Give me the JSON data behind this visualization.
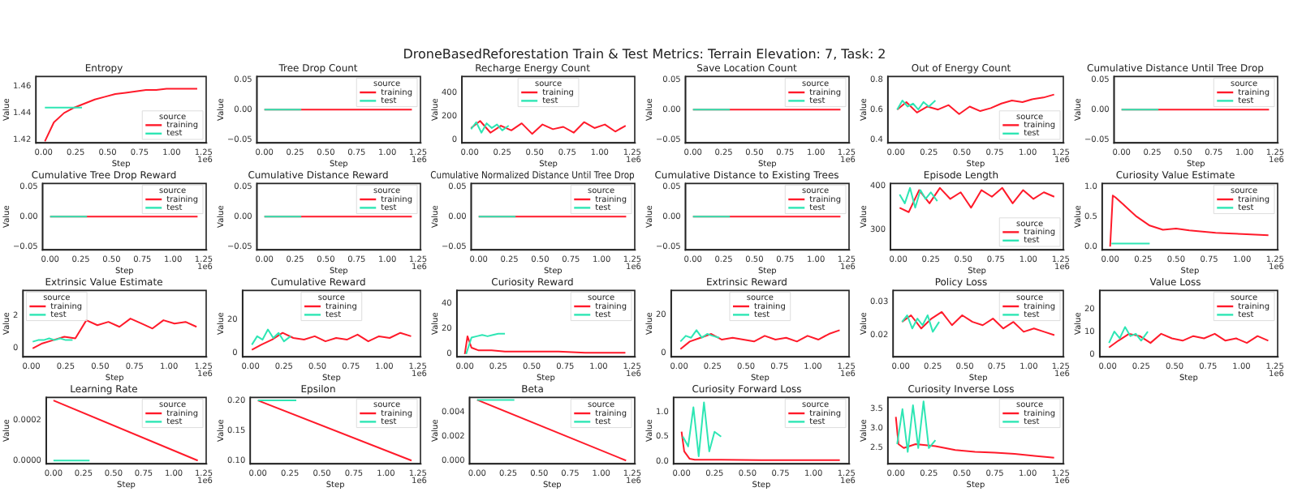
{
  "chart_data": [
    {
      "type": "other",
      "title": "DroneBasedReforestation Train & Test Metrics: Terrain Elevation: 7, Task: 2"
    },
    {
      "type": "line",
      "title": "Entropy",
      "xlabel": "Step",
      "ylabel": "Value",
      "legend_title": "source",
      "legend": "bottom right",
      "xlim": [
        -0.06,
        1.27
      ],
      "xticks": [
        {
          "value": 0,
          "label": "0.00"
        },
        0.25,
        {
          "value": 0.5,
          "label": "0.50"
        },
        0.75,
        {
          "value": 1,
          "label": "1.00"
        },
        1.25
      ],
      "ylim": [
        1.418,
        1.467
      ],
      "yticks": [
        1.42,
        1.44,
        1.46
      ],
      "annotations": [
        "1e6"
      ],
      "series": [
        {
          "name": "training",
          "color": "#ff1a2a",
          "x": [
            0.01,
            0.08,
            0.16,
            0.24,
            0.32,
            0.4,
            0.48,
            0.56,
            0.64,
            0.72,
            0.8,
            0.88,
            0.96,
            1.04,
            1.12,
            1.2
          ],
          "values": [
            1.419,
            1.433,
            1.44,
            1.444,
            1.447,
            1.45,
            1.452,
            1.454,
            1.455,
            1.456,
            1.457,
            1.457,
            1.458,
            1.458,
            1.458,
            1.458
          ]
        },
        {
          "name": "test",
          "color": "#2ee6b4",
          "x": [
            0.01,
            0.05,
            0.09,
            0.13,
            0.17,
            0.21,
            0.25,
            0.3
          ],
          "values": [
            1.444,
            1.444,
            1.444,
            1.444,
            1.444,
            1.444,
            1.444,
            1.444
          ]
        }
      ]
    },
    {
      "type": "line",
      "title": "Tree Drop Count",
      "xlabel": "Step",
      "ylabel": "Value",
      "legend_title": "source",
      "legend": "top right",
      "xlim": [
        -0.06,
        1.27
      ],
      "xticks": [
        {
          "value": 0,
          "label": "0.00"
        },
        0.25,
        {
          "value": 0.5,
          "label": "0.50"
        },
        0.75,
        {
          "value": 1,
          "label": "1.00"
        },
        1.25
      ],
      "ylim": [
        -0.055,
        0.055
      ],
      "yticks": [
        {
          "value": -0.05,
          "label": "−0.05"
        },
        {
          "value": 0,
          "label": "0.00"
        },
        0.05
      ],
      "annotations": [
        "1e6"
      ],
      "series": [
        {
          "name": "training",
          "color": "#ff1a2a",
          "x": [
            0,
            1.2
          ],
          "values": [
            0,
            0
          ]
        },
        {
          "name": "test",
          "color": "#2ee6b4",
          "x": [
            0,
            0.3
          ],
          "values": [
            0,
            0
          ]
        }
      ]
    },
    {
      "type": "line",
      "title": "Recharge Energy Count",
      "xlabel": "Step",
      "ylabel": "Value",
      "legend_title": "source",
      "legend": "top",
      "xlim": [
        -0.06,
        1.27
      ],
      "xticks": [
        {
          "value": 0,
          "label": "0.00"
        },
        0.25,
        {
          "value": 0.5,
          "label": "0.50"
        },
        0.75,
        {
          "value": 1,
          "label": "1.00"
        },
        1.25
      ],
      "ylim": [
        -25,
        540
      ],
      "yticks": [
        0,
        200,
        400
      ],
      "annotations": [
        "1e6"
      ],
      "series": [
        {
          "name": "training",
          "color": "#ff1a2a",
          "x": [
            0.01,
            0.08,
            0.16,
            0.24,
            0.32,
            0.4,
            0.48,
            0.56,
            0.64,
            0.72,
            0.8,
            0.88,
            0.96,
            1.04,
            1.12,
            1.2
          ],
          "values": [
            100,
            160,
            60,
            120,
            80,
            140,
            50,
            130,
            90,
            110,
            60,
            150,
            100,
            130,
            70,
            120
          ]
        },
        {
          "name": "test",
          "color": "#2ee6b4",
          "x": [
            0.01,
            0.05,
            0.09,
            0.13,
            0.17,
            0.21,
            0.25,
            0.3
          ],
          "values": [
            90,
            150,
            60,
            140,
            100,
            130,
            80,
            120
          ]
        }
      ]
    },
    {
      "type": "line",
      "title": "Save Location Count",
      "xlabel": "Step",
      "ylabel": "Value",
      "legend_title": "source",
      "legend": "top right",
      "xlim": [
        -0.06,
        1.27
      ],
      "xticks": [
        {
          "value": 0,
          "label": "0.00"
        },
        0.25,
        {
          "value": 0.5,
          "label": "0.50"
        },
        0.75,
        {
          "value": 1,
          "label": "1.00"
        },
        1.25
      ],
      "ylim": [
        -0.055,
        0.055
      ],
      "yticks": [
        {
          "value": -0.05,
          "label": "−0.05"
        },
        {
          "value": 0,
          "label": "0.00"
        },
        0.05
      ],
      "annotations": [
        "1e6"
      ],
      "series": [
        {
          "name": "training",
          "color": "#ff1a2a",
          "x": [
            0,
            1.2
          ],
          "values": [
            0,
            0
          ]
        },
        {
          "name": "test",
          "color": "#2ee6b4",
          "x": [
            0,
            0.3
          ],
          "values": [
            0,
            0
          ]
        }
      ]
    },
    {
      "type": "line",
      "title": "Out of Energy Count",
      "xlabel": "Step",
      "ylabel": "Value",
      "legend_title": "source",
      "legend": "bottom right",
      "xlim": [
        -0.06,
        1.27
      ],
      "xticks": [
        {
          "value": 0,
          "label": "0.00"
        },
        0.25,
        {
          "value": 0.5,
          "label": "0.50"
        },
        0.75,
        {
          "value": 1,
          "label": "1.00"
        },
        1.25
      ],
      "ylim": [
        0.38,
        0.82
      ],
      "yticks": [
        0.4,
        0.6,
        0.8
      ],
      "annotations": [
        "1e6"
      ],
      "series": [
        {
          "name": "training",
          "color": "#ff1a2a",
          "x": [
            0.01,
            0.08,
            0.16,
            0.24,
            0.32,
            0.4,
            0.48,
            0.56,
            0.64,
            0.72,
            0.8,
            0.88,
            0.96,
            1.04,
            1.12,
            1.2
          ],
          "values": [
            0.6,
            0.65,
            0.58,
            0.62,
            0.6,
            0.63,
            0.57,
            0.62,
            0.59,
            0.61,
            0.64,
            0.66,
            0.65,
            0.67,
            0.68,
            0.7
          ]
        },
        {
          "name": "test",
          "color": "#2ee6b4",
          "x": [
            0.01,
            0.05,
            0.09,
            0.13,
            0.17,
            0.21,
            0.25,
            0.3
          ],
          "values": [
            0.6,
            0.66,
            0.62,
            0.64,
            0.6,
            0.65,
            0.62,
            0.66
          ]
        }
      ]
    },
    {
      "type": "line",
      "title": "Cumulative Distance Until Tree Drop",
      "xlabel": "Step",
      "ylabel": "Value",
      "legend_title": "source",
      "legend": "top right",
      "xlim": [
        -0.06,
        1.27
      ],
      "xticks": [
        {
          "value": 0,
          "label": "0.00"
        },
        0.25,
        {
          "value": 0.5,
          "label": "0.50"
        },
        0.75,
        {
          "value": 1,
          "label": "1.00"
        },
        1.25
      ],
      "ylim": [
        -0.055,
        0.055
      ],
      "yticks": [
        {
          "value": -0.05,
          "label": "−0.05"
        },
        {
          "value": 0,
          "label": "0.00"
        },
        0.05
      ],
      "annotations": [
        "1e6"
      ],
      "series": [
        {
          "name": "training",
          "color": "#ff1a2a",
          "x": [
            0,
            1.2
          ],
          "values": [
            0,
            0
          ]
        },
        {
          "name": "test",
          "color": "#2ee6b4",
          "x": [
            0,
            0.3
          ],
          "values": [
            0,
            0
          ]
        }
      ]
    },
    {
      "type": "line",
      "title": "Cumulative Tree Drop Reward",
      "xlabel": "Step",
      "ylabel": "Value",
      "legend_title": "source",
      "legend": "top right",
      "xlim": [
        -0.06,
        1.27
      ],
      "xticks": [
        {
          "value": 0,
          "label": "0.00"
        },
        0.25,
        {
          "value": 0.5,
          "label": "0.50"
        },
        0.75,
        {
          "value": 1,
          "label": "1.00"
        },
        1.25
      ],
      "ylim": [
        -0.055,
        0.055
      ],
      "yticks": [
        {
          "value": -0.05,
          "label": "−0.05"
        },
        {
          "value": 0,
          "label": "0.00"
        },
        0.05
      ],
      "annotations": [
        "1e6"
      ],
      "series": [
        {
          "name": "training",
          "color": "#ff1a2a",
          "x": [
            0,
            1.2
          ],
          "values": [
            0,
            0
          ]
        },
        {
          "name": "test",
          "color": "#2ee6b4",
          "x": [
            0,
            0.3
          ],
          "values": [
            0,
            0
          ]
        }
      ]
    },
    {
      "type": "line",
      "title": "Cumulative Distance Reward",
      "xlabel": "Step",
      "ylabel": "Value",
      "legend_title": "source",
      "legend": "top right",
      "xlim": [
        -0.06,
        1.27
      ],
      "xticks": [
        {
          "value": 0,
          "label": "0.00"
        },
        0.25,
        {
          "value": 0.5,
          "label": "0.50"
        },
        0.75,
        {
          "value": 1,
          "label": "1.00"
        },
        1.25
      ],
      "ylim": [
        -0.055,
        0.055
      ],
      "yticks": [
        {
          "value": -0.05,
          "label": "−0.05"
        },
        {
          "value": 0,
          "label": "0.00"
        },
        0.05
      ],
      "annotations": [
        "1e6"
      ],
      "series": [
        {
          "name": "training",
          "color": "#ff1a2a",
          "x": [
            0,
            1.2
          ],
          "values": [
            0,
            0
          ]
        },
        {
          "name": "test",
          "color": "#2ee6b4",
          "x": [
            0,
            0.3
          ],
          "values": [
            0,
            0
          ]
        }
      ]
    },
    {
      "type": "line",
      "title": "Cumulative Normalized Distance Until Tree Drop",
      "xlabel": "Step",
      "ylabel": "Value",
      "legend_title": "source",
      "legend": "top right",
      "xlim": [
        -0.06,
        1.27
      ],
      "xticks": [
        {
          "value": 0,
          "label": "0.00"
        },
        0.25,
        {
          "value": 0.5,
          "label": "0.50"
        },
        0.75,
        {
          "value": 1,
          "label": "1.00"
        },
        1.25
      ],
      "ylim": [
        -0.055,
        0.055
      ],
      "yticks": [
        {
          "value": -0.05,
          "label": "−0.05"
        },
        {
          "value": 0,
          "label": "0.00"
        },
        0.05
      ],
      "annotations": [
        "1e6"
      ],
      "series": [
        {
          "name": "training",
          "color": "#ff1a2a",
          "x": [
            0,
            1.2
          ],
          "values": [
            0,
            0
          ]
        },
        {
          "name": "test",
          "color": "#2ee6b4",
          "x": [
            0,
            0.3
          ],
          "values": [
            0,
            0
          ]
        }
      ]
    },
    {
      "type": "line",
      "title": "Cumulative Distance to Existing Trees",
      "xlabel": "Step",
      "ylabel": "Value",
      "legend_title": "source",
      "legend": "top right",
      "xlim": [
        -0.06,
        1.27
      ],
      "xticks": [
        {
          "value": 0,
          "label": "0.00"
        },
        0.25,
        {
          "value": 0.5,
          "label": "0.50"
        },
        0.75,
        {
          "value": 1,
          "label": "1.00"
        },
        1.25
      ],
      "ylim": [
        -0.055,
        0.055
      ],
      "yticks": [
        {
          "value": -0.05,
          "label": "−0.05"
        },
        {
          "value": 0,
          "label": "0.00"
        },
        0.05
      ],
      "annotations": [
        "1e6"
      ],
      "series": [
        {
          "name": "training",
          "color": "#ff1a2a",
          "x": [
            0,
            1.2
          ],
          "values": [
            0,
            0
          ]
        },
        {
          "name": "test",
          "color": "#2ee6b4",
          "x": [
            0,
            0.3
          ],
          "values": [
            0,
            0
          ]
        }
      ]
    },
    {
      "type": "line",
      "title": "Episode Length",
      "xlabel": "Step",
      "ylabel": "Value",
      "legend_title": "source",
      "legend": "bottom right",
      "xlim": [
        -0.06,
        1.27
      ],
      "xticks": [
        {
          "value": 0,
          "label": "0.00"
        },
        0.25,
        {
          "value": 0.5,
          "label": "0.50"
        },
        0.75,
        {
          "value": 1,
          "label": "1.00"
        },
        1.25
      ],
      "ylim": [
        255,
        405
      ],
      "yticks": [
        300,
        400
      ],
      "annotations": [
        "1e6"
      ],
      "series": [
        {
          "name": "training",
          "color": "#ff1a2a",
          "x": [
            0.01,
            0.08,
            0.16,
            0.24,
            0.32,
            0.4,
            0.48,
            0.56,
            0.64,
            0.72,
            0.8,
            0.88,
            0.96,
            1.04,
            1.12,
            1.2
          ],
          "values": [
            350,
            340,
            390,
            360,
            395,
            370,
            385,
            350,
            390,
            375,
            395,
            360,
            390,
            370,
            385,
            375
          ]
        },
        {
          "name": "test",
          "color": "#2ee6b4",
          "x": [
            0.01,
            0.05,
            0.09,
            0.13,
            0.17,
            0.21,
            0.25,
            0.3
          ],
          "values": [
            380,
            360,
            395,
            350,
            390,
            370,
            385,
            365
          ]
        }
      ]
    },
    {
      "type": "line",
      "title": "Curiosity Value Estimate",
      "xlabel": "Step",
      "ylabel": "Value",
      "legend_title": "source",
      "legend": "top right",
      "xlim": [
        -0.06,
        1.27
      ],
      "xticks": [
        {
          "value": 0,
          "label": "0.00"
        },
        0.25,
        {
          "value": 0.5,
          "label": "0.50"
        },
        0.75,
        {
          "value": 1,
          "label": "1.00"
        },
        1.25
      ],
      "ylim": [
        -0.05,
        1.05
      ],
      "yticks": [
        {
          "value": 0,
          "label": "0.0"
        },
        0.5,
        {
          "value": 1,
          "label": "1.0"
        }
      ],
      "annotations": [
        "1e6"
      ],
      "series": [
        {
          "name": "training",
          "color": "#ff1a2a",
          "x": [
            0,
            0.02,
            0.04,
            0.1,
            0.2,
            0.3,
            0.4,
            0.5,
            0.6,
            0.7,
            0.8,
            0.9,
            1,
            1.1,
            1.2
          ],
          "values": [
            0,
            0.85,
            0.82,
            0.7,
            0.5,
            0.35,
            0.28,
            0.3,
            0.27,
            0.25,
            0.23,
            0.22,
            0.21,
            0.2,
            0.19
          ]
        },
        {
          "name": "test",
          "color": "#2ee6b4",
          "x": [
            0.01,
            0.05,
            0.09,
            0.13,
            0.17,
            0.21,
            0.25,
            0.3
          ],
          "values": [
            0.05,
            0.05,
            0.05,
            0.05,
            0.05,
            0.05,
            0.05,
            0.05
          ]
        }
      ]
    },
    {
      "type": "line",
      "title": "Extrinsic Value Estimate",
      "xlabel": "Step",
      "ylabel": "Value",
      "legend_title": "source",
      "legend": "top left",
      "xlim": [
        -0.06,
        1.27
      ],
      "xticks": [
        {
          "value": 0,
          "label": "0.00"
        },
        0.25,
        {
          "value": 0.5,
          "label": "0.50"
        },
        0.75,
        {
          "value": 1,
          "label": "1.00"
        },
        1.25
      ],
      "ylim": [
        -0.5,
        3.5
      ],
      "yticks": [
        0,
        2
      ],
      "annotations": [
        "1e6"
      ],
      "series": [
        {
          "name": "training",
          "color": "#ff1a2a",
          "x": [
            0.01,
            0.08,
            0.16,
            0.24,
            0.32,
            0.4,
            0.48,
            0.56,
            0.64,
            0.72,
            0.8,
            0.88,
            0.96,
            1.04,
            1.12,
            1.2
          ],
          "values": [
            0,
            0.3,
            0.5,
            0.7,
            0.6,
            1.7,
            1.4,
            1.6,
            1.3,
            1.8,
            1.5,
            1.2,
            1.7,
            1.5,
            1.6,
            1.3
          ]
        },
        {
          "name": "test",
          "color": "#2ee6b4",
          "x": [
            0.01,
            0.05,
            0.09,
            0.13,
            0.17,
            0.21,
            0.25,
            0.3
          ],
          "values": [
            0.4,
            0.5,
            0.5,
            0.6,
            0.5,
            0.6,
            0.5,
            0.5
          ]
        }
      ]
    },
    {
      "type": "line",
      "title": "Cumulative Reward",
      "xlabel": "Step",
      "ylabel": "Value",
      "legend_title": "source",
      "legend": "top",
      "xlim": [
        -0.06,
        1.27
      ],
      "xticks": [
        {
          "value": 0,
          "label": "0.00"
        },
        0.25,
        {
          "value": 0.5,
          "label": "0.50"
        },
        0.75,
        {
          "value": 1,
          "label": "1.00"
        },
        1.25
      ],
      "ylim": [
        -2,
        37
      ],
      "yticks": [
        0,
        20
      ],
      "annotations": [
        "1e6"
      ],
      "series": [
        {
          "name": "training",
          "color": "#ff1a2a",
          "x": [
            0.01,
            0.08,
            0.16,
            0.24,
            0.32,
            0.4,
            0.48,
            0.56,
            0.64,
            0.72,
            0.8,
            0.88,
            0.96,
            1.04,
            1.12,
            1.2
          ],
          "values": [
            2,
            5,
            8,
            12,
            9,
            8,
            10,
            7,
            9,
            8,
            11,
            7,
            10,
            9,
            12,
            10
          ]
        },
        {
          "name": "test",
          "color": "#2ee6b4",
          "x": [
            0.01,
            0.05,
            0.09,
            0.13,
            0.17,
            0.21,
            0.25,
            0.3
          ],
          "values": [
            5,
            10,
            8,
            14,
            9,
            12,
            7,
            10
          ]
        }
      ]
    },
    {
      "type": "line",
      "title": "Curiosity Reward",
      "xlabel": "Step",
      "ylabel": "Value",
      "legend_title": "source",
      "legend": "top right",
      "xlim": [
        -0.06,
        1.27
      ],
      "xticks": [
        {
          "value": 0,
          "label": "0.00"
        },
        0.25,
        {
          "value": 0.5,
          "label": "0.50"
        },
        0.75,
        {
          "value": 1,
          "label": "1.00"
        },
        1.25
      ],
      "ylim": [
        -2,
        50
      ],
      "yticks": [
        0,
        20,
        40
      ],
      "annotations": [
        "1e6"
      ],
      "series": [
        {
          "name": "training",
          "color": "#ff1a2a",
          "x": [
            0,
            0.02,
            0.05,
            0.1,
            0.2,
            0.3,
            0.5,
            0.7,
            0.9,
            1.1,
            1.2
          ],
          "values": [
            0,
            14,
            5,
            3,
            3,
            2,
            2,
            2,
            1,
            1,
            1
          ]
        },
        {
          "name": "test",
          "color": "#2ee6b4",
          "x": [
            0.01,
            0.05,
            0.09,
            0.13,
            0.17,
            0.21,
            0.25,
            0.3
          ],
          "values": [
            0,
            13,
            14,
            15,
            14,
            15,
            16,
            16
          ]
        }
      ]
    },
    {
      "type": "line",
      "title": "Extrinsic Reward",
      "xlabel": "Step",
      "ylabel": "Value",
      "legend_title": "source",
      "legend": "top",
      "xlim": [
        -0.06,
        1.27
      ],
      "xticks": [
        {
          "value": 0,
          "label": "0.00"
        },
        0.25,
        {
          "value": 0.5,
          "label": "0.50"
        },
        0.75,
        {
          "value": 1,
          "label": "1.00"
        },
        1.25
      ],
      "ylim": [
        -2,
        33
      ],
      "yticks": [
        0,
        20
      ],
      "annotations": [
        "1e6"
      ],
      "series": [
        {
          "name": "training",
          "color": "#ff1a2a",
          "x": [
            0.01,
            0.08,
            0.16,
            0.24,
            0.32,
            0.4,
            0.48,
            0.56,
            0.64,
            0.72,
            0.8,
            0.88,
            0.96,
            1.04,
            1.12,
            1.2
          ],
          "values": [
            2,
            6,
            8,
            10,
            7,
            8,
            7,
            6,
            9,
            7,
            8,
            6,
            9,
            7,
            10,
            12
          ]
        },
        {
          "name": "test",
          "color": "#2ee6b4",
          "x": [
            0.01,
            0.05,
            0.09,
            0.13,
            0.17,
            0.21,
            0.25,
            0.3
          ],
          "values": [
            6,
            9,
            8,
            12,
            8,
            10,
            9,
            8
          ]
        }
      ]
    },
    {
      "type": "line",
      "title": "Policy Loss",
      "xlabel": "Step",
      "ylabel": "Value",
      "legend_title": "source",
      "legend": "top right",
      "xlim": [
        -0.06,
        1.27
      ],
      "xticks": [
        {
          "value": 0,
          "label": "0.00"
        },
        0.25,
        {
          "value": 0.5,
          "label": "0.50"
        },
        0.75,
        {
          "value": 1,
          "label": "1.00"
        },
        1.25
      ],
      "ylim": [
        0.0135,
        0.0335
      ],
      "yticks": [
        0.02,
        0.03
      ],
      "annotations": [
        "1e6"
      ],
      "series": [
        {
          "name": "training",
          "color": "#ff1a2a",
          "x": [
            0.01,
            0.08,
            0.16,
            0.24,
            0.32,
            0.4,
            0.48,
            0.56,
            0.64,
            0.72,
            0.8,
            0.88,
            0.96,
            1.04,
            1.12,
            1.2
          ],
          "values": [
            0.024,
            0.026,
            0.022,
            0.025,
            0.027,
            0.023,
            0.026,
            0.024,
            0.023,
            0.025,
            0.022,
            0.024,
            0.021,
            0.022,
            0.021,
            0.02
          ]
        },
        {
          "name": "test",
          "color": "#2ee6b4",
          "x": [
            0.01,
            0.05,
            0.09,
            0.13,
            0.17,
            0.21,
            0.25,
            0.3
          ],
          "values": [
            0.024,
            0.026,
            0.022,
            0.025,
            0.023,
            0.026,
            0.021,
            0.024
          ]
        }
      ]
    },
    {
      "type": "line",
      "title": "Value Loss",
      "xlabel": "Step",
      "ylabel": "Value",
      "legend_title": "source",
      "legend": "top right",
      "xlim": [
        -0.06,
        1.27
      ],
      "xticks": [
        {
          "value": 0,
          "label": "0.00"
        },
        0.25,
        {
          "value": 0.5,
          "label": "0.50"
        },
        0.75,
        {
          "value": 1,
          "label": "1.00"
        },
        1.25
      ],
      "ylim": [
        -1,
        28
      ],
      "yticks": [
        0,
        10,
        20
      ],
      "annotations": [
        "1e6"
      ],
      "series": [
        {
          "name": "training",
          "color": "#ff1a2a",
          "x": [
            0.01,
            0.08,
            0.16,
            0.24,
            0.32,
            0.4,
            0.48,
            0.56,
            0.64,
            0.72,
            0.8,
            0.88,
            0.96,
            1.04,
            1.12,
            1.2
          ],
          "values": [
            3,
            6,
            9,
            8,
            5,
            9,
            7,
            6,
            8,
            7,
            9,
            6,
            7,
            5,
            8,
            6
          ]
        },
        {
          "name": "test",
          "color": "#2ee6b4",
          "x": [
            0.01,
            0.05,
            0.09,
            0.13,
            0.17,
            0.21,
            0.25,
            0.3
          ],
          "values": [
            5,
            10,
            7,
            12,
            8,
            9,
            6,
            10
          ]
        }
      ]
    },
    {
      "type": "line",
      "title": "Learning Rate",
      "xlabel": "Step",
      "ylabel": "Value",
      "legend_title": "source",
      "legend": "top right",
      "xlim": [
        -0.06,
        1.27
      ],
      "xticks": [
        {
          "value": 0,
          "label": "0.00"
        },
        0.25,
        {
          "value": 0.5,
          "label": "0.50"
        },
        0.75,
        {
          "value": 1,
          "label": "1.00"
        },
        1.25
      ],
      "ylim": [
        -1.5e-05,
        0.000315
      ],
      "yticks": [
        {
          "value": 0,
          "label": "0.0000"
        },
        0.0002
      ],
      "annotations": [
        "1e6"
      ],
      "series": [
        {
          "name": "training",
          "color": "#ff1a2a",
          "x": [
            0,
            1.2
          ],
          "values": [
            0.0003,
            0
          ]
        },
        {
          "name": "test",
          "color": "#2ee6b4",
          "x": [
            0,
            0.3
          ],
          "values": [
            0,
            0
          ]
        }
      ]
    },
    {
      "type": "line",
      "title": "Epsilon",
      "xlabel": "Step",
      "ylabel": "Value",
      "legend_title": "source",
      "legend": "top right",
      "xlim": [
        -0.06,
        1.27
      ],
      "xticks": [
        {
          "value": 0,
          "label": "0.00"
        },
        0.25,
        {
          "value": 0.5,
          "label": "0.50"
        },
        0.75,
        {
          "value": 1,
          "label": "1.00"
        },
        1.25
      ],
      "ylim": [
        0.095,
        0.205
      ],
      "yticks": [
        {
          "value": 0.1,
          "label": "0.10"
        },
        0.15,
        {
          "value": 0.2,
          "label": "0.20"
        }
      ],
      "annotations": [
        "1e6"
      ],
      "series": [
        {
          "name": "training",
          "color": "#ff1a2a",
          "x": [
            0,
            1.2
          ],
          "values": [
            0.2,
            0.1
          ]
        },
        {
          "name": "test",
          "color": "#2ee6b4",
          "x": [
            0,
            0.3
          ],
          "values": [
            0.2,
            0.2
          ]
        }
      ]
    },
    {
      "type": "line",
      "title": "Beta",
      "xlabel": "Step",
      "ylabel": "Value",
      "legend_title": "source",
      "legend": "top right",
      "xlim": [
        -0.06,
        1.27
      ],
      "xticks": [
        {
          "value": 0,
          "label": "0.00"
        },
        0.25,
        {
          "value": 0.5,
          "label": "0.50"
        },
        0.75,
        {
          "value": 1,
          "label": "1.00"
        },
        1.25
      ],
      "ylim": [
        -0.00025,
        0.0052
      ],
      "yticks": [
        {
          "value": 0,
          "label": "0.000"
        },
        0.002,
        0.004
      ],
      "annotations": [
        "1e6"
      ],
      "series": [
        {
          "name": "training",
          "color": "#ff1a2a",
          "x": [
            0,
            1.2
          ],
          "values": [
            0.005,
            0
          ]
        },
        {
          "name": "test",
          "color": "#2ee6b4",
          "x": [
            0,
            0.3
          ],
          "values": [
            0.005,
            0.005
          ]
        }
      ]
    },
    {
      "type": "line",
      "title": "Curiosity Forward Loss",
      "xlabel": "Step",
      "ylabel": "Value",
      "legend_title": "source",
      "legend": "top right",
      "xlim": [
        -0.06,
        1.27
      ],
      "xticks": [
        {
          "value": 0,
          "label": "0.00"
        },
        0.25,
        {
          "value": 0.5,
          "label": "0.50"
        },
        0.75,
        {
          "value": 1,
          "label": "1.00"
        },
        1.25
      ],
      "ylim": [
        -0.05,
        1.3
      ],
      "yticks": [
        {
          "value": 0,
          "label": "0.0"
        },
        0.5,
        {
          "value": 1,
          "label": "1.0"
        }
      ],
      "annotations": [
        "1e6"
      ],
      "series": [
        {
          "name": "training",
          "color": "#ff1a2a",
          "x": [
            0,
            0.02,
            0.06,
            0.1,
            0.3,
            0.6,
            0.9,
            1.2
          ],
          "values": [
            0.6,
            0.2,
            0.05,
            0.03,
            0.03,
            0.02,
            0.02,
            0.02
          ]
        },
        {
          "name": "test",
          "color": "#2ee6b4",
          "x": [
            0.01,
            0.05,
            0.09,
            0.13,
            0.17,
            0.21,
            0.25,
            0.3
          ],
          "values": [
            0.5,
            0.3,
            1.1,
            0.1,
            1.2,
            0.2,
            0.6,
            0.5
          ]
        }
      ]
    },
    {
      "type": "line",
      "title": "Curiosity Inverse Loss",
      "xlabel": "Step",
      "ylabel": "Value",
      "legend_title": "source",
      "legend": "top right",
      "xlim": [
        -0.06,
        1.27
      ],
      "xticks": [
        {
          "value": 0,
          "label": "0.00"
        },
        0.25,
        {
          "value": 0.5,
          "label": "0.50"
        },
        0.75,
        {
          "value": 1,
          "label": "1.00"
        },
        1.25
      ],
      "ylim": [
        2.1,
        3.8
      ],
      "yticks": [
        2.5,
        {
          "value": 3,
          "label": "3.0"
        },
        3.5
      ],
      "annotations": [
        "1e6"
      ],
      "series": [
        {
          "name": "training",
          "color": "#ff1a2a",
          "x": [
            0,
            0.02,
            0.06,
            0.15,
            0.3,
            0.45,
            0.6,
            0.75,
            0.9,
            1.05,
            1.2
          ],
          "values": [
            3.3,
            2.6,
            2.5,
            2.6,
            2.55,
            2.45,
            2.4,
            2.38,
            2.35,
            2.3,
            2.25
          ]
        },
        {
          "name": "test",
          "color": "#2ee6b4",
          "x": [
            0.01,
            0.05,
            0.09,
            0.13,
            0.17,
            0.21,
            0.25,
            0.3
          ],
          "values": [
            2.6,
            3.5,
            2.4,
            3.6,
            2.5,
            3.7,
            2.5,
            2.7
          ]
        }
      ]
    }
  ]
}
